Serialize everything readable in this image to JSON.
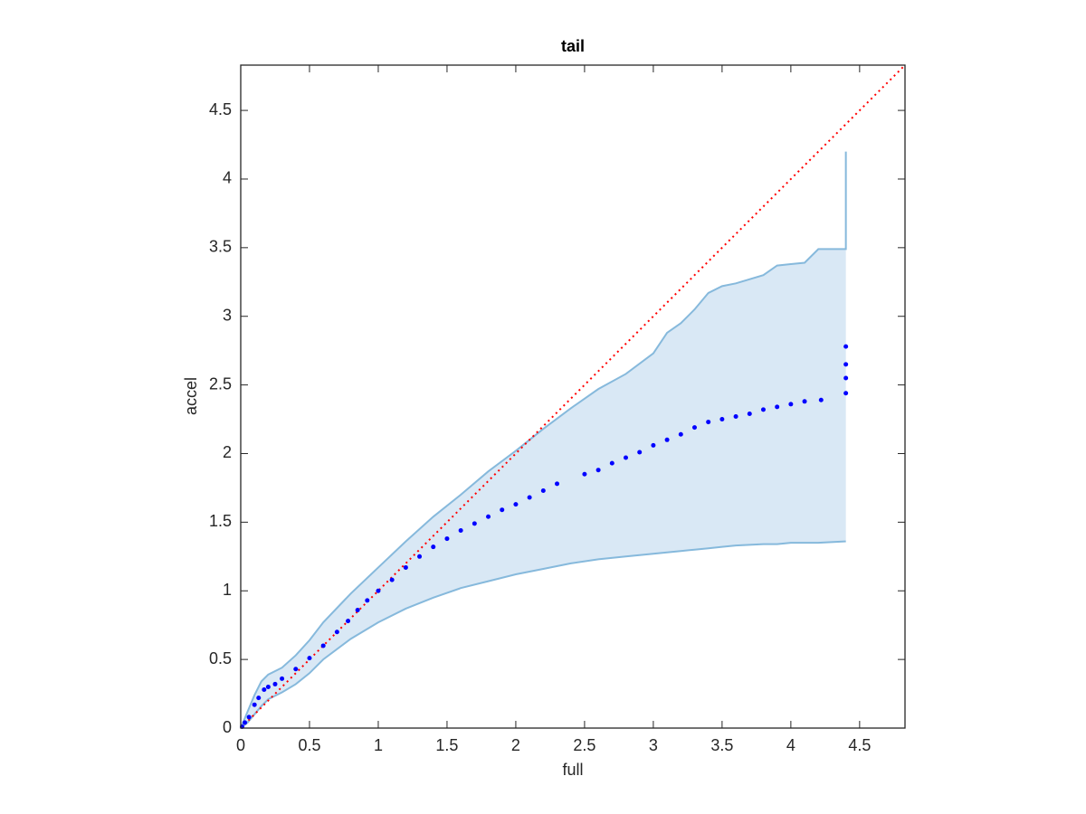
{
  "chart_data": {
    "type": "scatter",
    "title": "tail",
    "xlabel": "full",
    "ylabel": "accel",
    "xlim": [
      0,
      4.83
    ],
    "ylim": [
      0,
      4.83
    ],
    "xticks": [
      0,
      0.5,
      1,
      1.5,
      2,
      2.5,
      3,
      3.5,
      4,
      4.5
    ],
    "yticks": [
      0,
      0.5,
      1,
      1.5,
      2,
      2.5,
      3,
      3.5,
      4,
      4.5
    ],
    "band": {
      "color": "#86b9dc",
      "fill": "#d9e8f5",
      "x": [
        0,
        0.05,
        0.1,
        0.15,
        0.2,
        0.3,
        0.4,
        0.5,
        0.6,
        0.8,
        1.0,
        1.2,
        1.4,
        1.6,
        1.8,
        2.0,
        2.2,
        2.4,
        2.6,
        2.8,
        3.0,
        3.1,
        3.2,
        3.3,
        3.4,
        3.5,
        3.6,
        3.8,
        3.9,
        4.0,
        4.1,
        4.2,
        4.39,
        4.4,
        4.4
      ],
      "upper": [
        0,
        0.12,
        0.24,
        0.34,
        0.39,
        0.44,
        0.53,
        0.64,
        0.77,
        0.98,
        1.17,
        1.36,
        1.54,
        1.7,
        1.87,
        2.02,
        2.18,
        2.33,
        2.47,
        2.58,
        2.73,
        2.88,
        2.95,
        3.05,
        3.17,
        3.22,
        3.24,
        3.3,
        3.37,
        3.38,
        3.39,
        3.49,
        3.49,
        3.49,
        4.2
      ],
      "lower": [
        0,
        0.04,
        0.1,
        0.16,
        0.21,
        0.26,
        0.32,
        0.4,
        0.5,
        0.65,
        0.77,
        0.87,
        0.95,
        1.02,
        1.07,
        1.12,
        1.16,
        1.2,
        1.23,
        1.25,
        1.27,
        1.28,
        1.29,
        1.3,
        1.31,
        1.32,
        1.33,
        1.34,
        1.34,
        1.35,
        1.35,
        1.35,
        1.36,
        1.36,
        1.36
      ]
    },
    "reference": {
      "color": "#ff0000",
      "x": [
        0,
        4.83
      ],
      "y": [
        0,
        4.83
      ]
    },
    "series": [
      {
        "color": "#0000ff",
        "x": [
          0.01,
          0.03,
          0.06,
          0.1,
          0.13,
          0.17,
          0.2,
          0.25,
          0.3,
          0.4,
          0.5,
          0.6,
          0.7,
          0.78,
          0.85,
          0.92,
          1.0,
          1.1,
          1.2,
          1.3,
          1.4,
          1.5,
          1.6,
          1.7,
          1.8,
          1.9,
          2.0,
          2.1,
          2.2,
          2.3,
          2.5,
          2.6,
          2.7,
          2.8,
          2.9,
          3.0,
          3.1,
          3.2,
          3.3,
          3.4,
          3.5,
          3.6,
          3.7,
          3.8,
          3.9,
          4.0,
          4.1,
          4.22,
          4.4,
          4.4,
          4.4,
          4.4
        ],
        "y": [
          0.01,
          0.04,
          0.08,
          0.17,
          0.22,
          0.28,
          0.3,
          0.32,
          0.36,
          0.43,
          0.51,
          0.6,
          0.7,
          0.78,
          0.86,
          0.93,
          1.0,
          1.08,
          1.17,
          1.25,
          1.32,
          1.38,
          1.44,
          1.49,
          1.54,
          1.59,
          1.63,
          1.68,
          1.73,
          1.78,
          1.85,
          1.88,
          1.93,
          1.97,
          2.01,
          2.06,
          2.1,
          2.14,
          2.19,
          2.23,
          2.25,
          2.27,
          2.29,
          2.32,
          2.34,
          2.36,
          2.38,
          2.39,
          2.44,
          2.55,
          2.65,
          2.78
        ]
      }
    ]
  }
}
